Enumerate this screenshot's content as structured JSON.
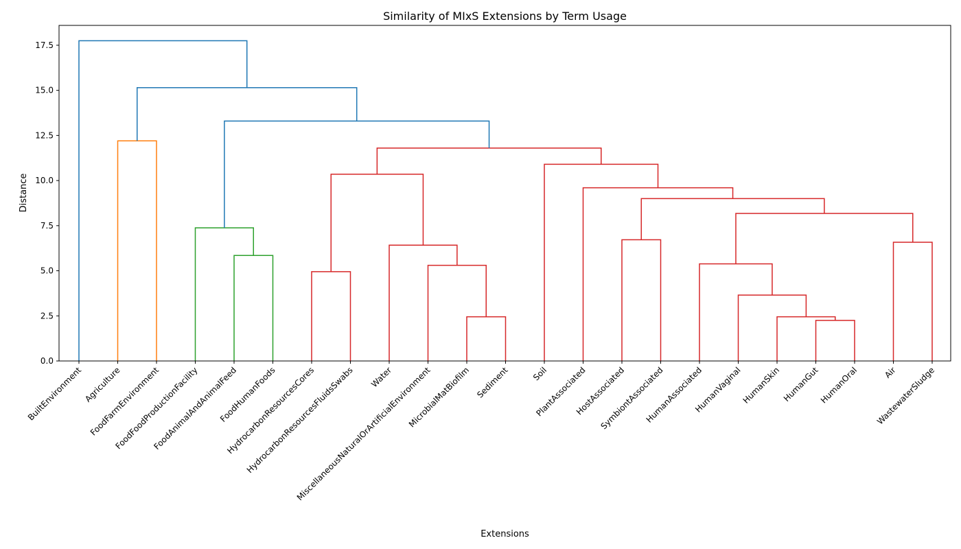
{
  "chart_data": {
    "type": "dendrogram",
    "title": "Similarity of MIxS Extensions by Term Usage",
    "xlabel": "Extensions",
    "ylabel": "Distance",
    "ylim": [
      0,
      18.6
    ],
    "yticks": [
      0.0,
      2.5,
      5.0,
      7.5,
      10.0,
      12.5,
      15.0,
      17.5
    ],
    "ytick_labels": [
      "0.0",
      "2.5",
      "5.0",
      "7.5",
      "10.0",
      "12.5",
      "15.0",
      "17.5"
    ],
    "leaves": [
      "BuiltEnvironment",
      "Agriculture",
      "FoodFarmEnvironment",
      "FoodFoodProductionFacility",
      "FoodAnimalAndAnimalFeed",
      "FoodHumanFoods",
      "HydrocarbonResourcesCores",
      "HydrocarbonResourcesFluidsSwabs",
      "Water",
      "MiscellaneousNaturalOrArtificialEnvironment",
      "MicrobialMatBiofilm",
      "Sediment",
      "Soil",
      "PlantAssociated",
      "HostAssociated",
      "SymbiontAssociated",
      "HumanAssociated",
      "HumanVaginal",
      "HumanSkin",
      "HumanGut",
      "HumanOral",
      "Air",
      "WastewaterSludge"
    ],
    "colors": {
      "C0": "#1f77b4",
      "C1": "#ff7f0e",
      "C2": "#2ca02c",
      "C3": "#d62728"
    },
    "merges": [
      {
        "left": "HumanGut",
        "right": "HumanOral",
        "height": 2.25,
        "color": "C3"
      },
      {
        "left": "MicrobialMatBiofilm",
        "right": "Sediment",
        "height": 2.45,
        "color": "C3"
      },
      {
        "left": "HumanSkin",
        "right": "HumanGut+HumanOral",
        "height": 2.45,
        "color": "C3"
      },
      {
        "left": "HumanVaginal",
        "right": "HumanSkin+HumanGut+HumanOral",
        "height": 3.65,
        "color": "C3"
      },
      {
        "left": "HydrocarbonResourcesCores",
        "right": "HydrocarbonResourcesFluidsSwabs",
        "height": 4.95,
        "color": "C3"
      },
      {
        "left": "MiscellaneousNaturalOrArtificialEnvironment",
        "right": "MicrobialMatBiofilm+Sediment",
        "height": 5.3,
        "color": "C3"
      },
      {
        "left": "HumanAssociated",
        "right": "HumanVaginal+HumanSkin+HumanGut+HumanOral",
        "height": 5.38,
        "color": "C3"
      },
      {
        "left": "FoodAnimalAndAnimalFeed",
        "right": "FoodHumanFoods",
        "height": 5.85,
        "color": "C2"
      },
      {
        "left": "Water",
        "right": "Misc+MicrobialMatBiofilm+Sediment",
        "height": 6.42,
        "color": "C3"
      },
      {
        "left": "Air",
        "right": "WastewaterSludge",
        "height": 6.58,
        "color": "C3"
      },
      {
        "left": "HostAssociated",
        "right": "SymbiontAssociated",
        "height": 6.72,
        "color": "C3"
      },
      {
        "left": "FoodFoodProductionFacility",
        "right": "FoodAnimalAndAnimalFeed+FoodHumanFoods",
        "height": 7.38,
        "color": "C2"
      },
      {
        "left": "Human cluster",
        "right": "Air+WastewaterSludge",
        "height": 8.18,
        "color": "C3"
      },
      {
        "left": "HostAssociated+SymbiontAssociated",
        "right": "Human cluster+Air+WastewaterSludge",
        "height": 9.0,
        "color": "C3"
      },
      {
        "left": "PlantAssociated",
        "right": "Host/Symbiont/Human/Air cluster",
        "height": 9.6,
        "color": "C3"
      },
      {
        "left": "Hydrocarbon cluster",
        "right": "Water cluster",
        "height": 10.35,
        "color": "C3"
      },
      {
        "left": "Soil",
        "right": "PlantAssociated cluster",
        "height": 10.9,
        "color": "C3"
      },
      {
        "left": "Hydrocarbon/Water cluster",
        "right": "Soil cluster",
        "height": 11.8,
        "color": "C3"
      },
      {
        "left": "Agriculture",
        "right": "FoodFarmEnvironment",
        "height": 12.2,
        "color": "C1"
      },
      {
        "left": "Food cluster",
        "right": "Environmental cluster",
        "height": 13.3,
        "color": "C0"
      },
      {
        "left": "Agriculture+FoodFarmEnvironment",
        "right": "Food+Environmental cluster",
        "height": 15.15,
        "color": "C0"
      },
      {
        "left": "BuiltEnvironment",
        "right": "all others",
        "height": 17.75,
        "color": "C0"
      }
    ]
  }
}
